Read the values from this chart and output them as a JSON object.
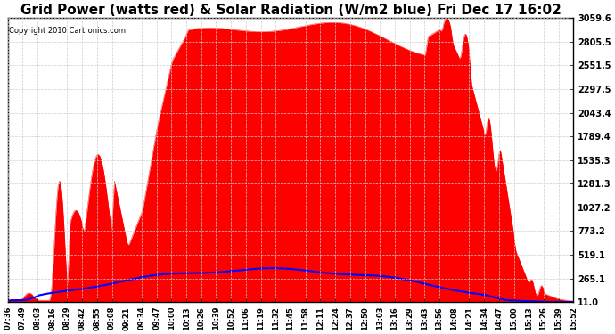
{
  "title": "Grid Power (watts red) & Solar Radiation (W/m2 blue) Fri Dec 17 16:02",
  "copyright": "Copyright 2010 Cartronics.com",
  "y_ticks": [
    11.0,
    265.1,
    519.1,
    773.2,
    1027.2,
    1281.3,
    1535.3,
    1789.4,
    2043.4,
    2297.5,
    2551.5,
    2805.5,
    3059.6
  ],
  "x_labels": [
    "07:36",
    "07:49",
    "08:03",
    "08:16",
    "08:29",
    "08:42",
    "08:55",
    "09:08",
    "09:21",
    "09:34",
    "09:47",
    "10:00",
    "10:13",
    "10:26",
    "10:39",
    "10:52",
    "11:06",
    "11:19",
    "11:32",
    "11:45",
    "11:58",
    "12:11",
    "12:24",
    "12:37",
    "12:50",
    "13:03",
    "13:16",
    "13:29",
    "13:43",
    "13:56",
    "14:08",
    "14:21",
    "14:34",
    "14:47",
    "15:00",
    "15:13",
    "15:26",
    "15:39",
    "15:52"
  ],
  "background_color": "#ffffff",
  "plot_bg_color": "#ffffff",
  "grid_color": "#cccccc",
  "red_color": "#ff0000",
  "blue_color": "#0000ff",
  "title_fontsize": 11,
  "ymin": 11.0,
  "ymax": 3059.6,
  "n_points": 780
}
